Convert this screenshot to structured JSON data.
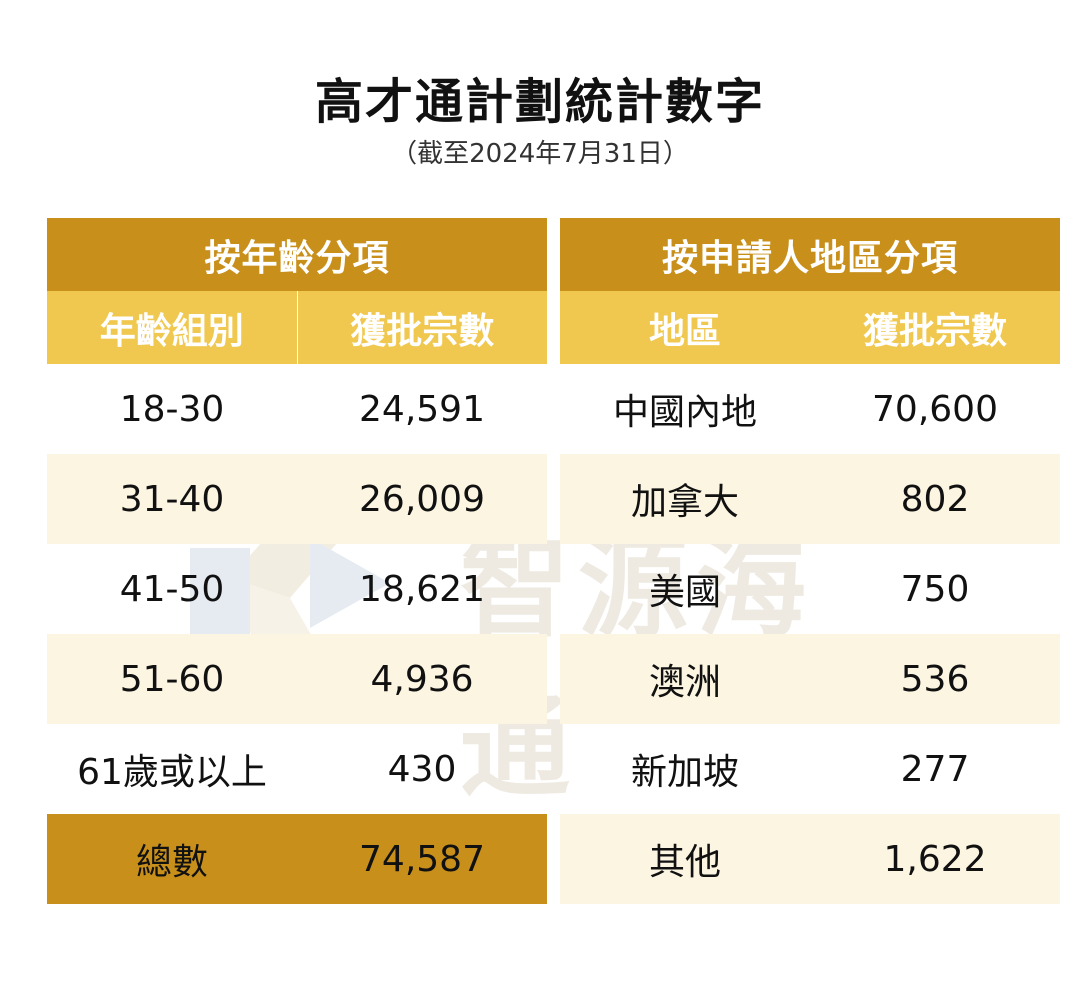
{
  "header": {
    "title": "高才通計劃統計數字",
    "subtitle": "（截至2024年7月31日）"
  },
  "age_table": {
    "title": "按年齡分項",
    "col1": "年齡組別",
    "col2": "獲批宗數",
    "rows": [
      {
        "group": "18-30",
        "count": "24,591"
      },
      {
        "group": "31-40",
        "count": "26,009"
      },
      {
        "group": "41-50",
        "count": "18,621"
      },
      {
        "group": "51-60",
        "count": "4,936"
      },
      {
        "group": "61歲或以上",
        "count": "430"
      }
    ],
    "total_label": "總數",
    "total_value": "74,587"
  },
  "region_table": {
    "title": "按申請人地區分項",
    "col1": "地區",
    "col2": "獲批宗數",
    "rows": [
      {
        "region": "中國內地",
        "count": "70,600"
      },
      {
        "region": "加拿大",
        "count": "802"
      },
      {
        "region": "美國",
        "count": "750"
      },
      {
        "region": "澳洲",
        "count": "536"
      },
      {
        "region": "新加坡",
        "count": "277"
      },
      {
        "region": "其他",
        "count": "1,622"
      }
    ]
  },
  "watermark": {
    "text": "智源海通"
  },
  "colors": {
    "header_dark": "#c8901b",
    "header_light": "#f0c850",
    "row_alt": "#fcf5e2"
  }
}
